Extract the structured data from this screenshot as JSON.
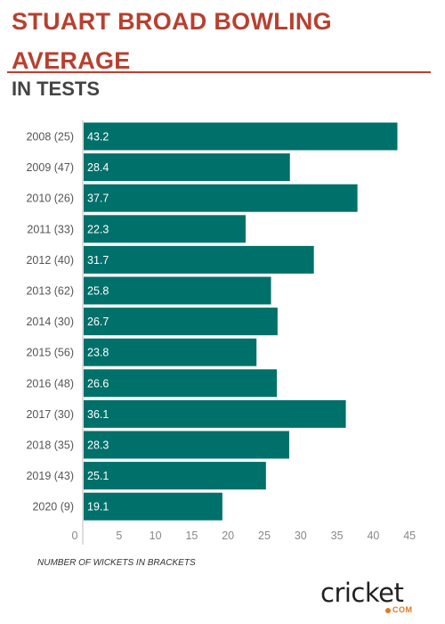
{
  "header": {
    "title": "STUART BROAD BOWLING AVERAGE",
    "subtitle": "IN TESTS"
  },
  "footnote": "NUMBER OF WICKETS IN BRACKETS",
  "logo": {
    "word": "cricket",
    "suffix": "COM"
  },
  "colors": {
    "title": "#b8402f",
    "bar": "#00706a",
    "accent": "#e07a1f"
  },
  "chart_data": {
    "type": "bar",
    "orientation": "horizontal",
    "title": "STUART BROAD BOWLING AVERAGE",
    "subtitle": "IN TESTS",
    "categories": [
      "2008 (25)",
      "2009 (47)",
      "2010 (26)",
      "2011 (33)",
      "2012 (40)",
      "2013 (62)",
      "2014 (30)",
      "2015 (56)",
      "2016 (48)",
      "2017 (30)",
      "2018 (35)",
      "2019 (43)",
      "2020 (9)"
    ],
    "values": [
      43.2,
      28.4,
      37.7,
      22.3,
      31.7,
      25.8,
      26.7,
      23.8,
      26.6,
      36.1,
      28.3,
      25.1,
      19.1
    ],
    "data_labels": [
      "43.2",
      "28.4",
      "37.7",
      "22.3",
      "31.7",
      "25.8",
      "26.7",
      "23.8",
      "26.6",
      "36.1",
      "28.3",
      "25.1",
      "19.1"
    ],
    "xlim": [
      0,
      45
    ],
    "xticks": [
      "0",
      "5",
      "10",
      "15",
      "20",
      "25",
      "30",
      "35",
      "40",
      "45"
    ],
    "grid": false,
    "legend": "none"
  }
}
